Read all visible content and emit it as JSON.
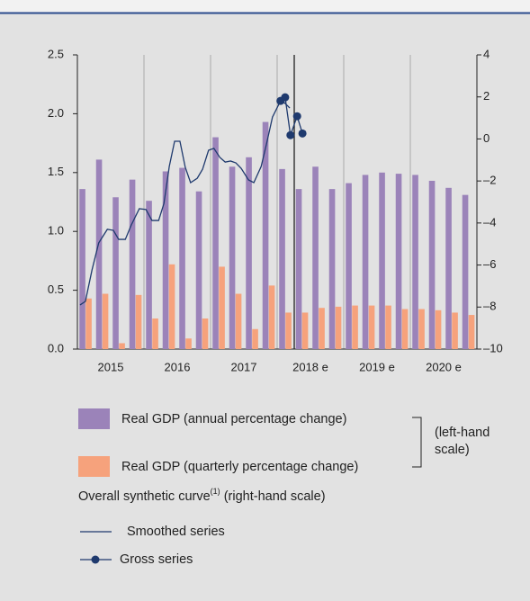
{
  "chart_data": {
    "type": "bar-line",
    "categories": [
      null,
      null,
      null,
      null,
      null,
      null,
      null,
      null,
      null,
      null,
      null,
      null,
      null,
      null,
      null,
      null,
      null,
      null,
      null,
      null,
      null,
      null,
      null,
      null
    ],
    "year_labels": [
      "2015",
      "2016",
      "2017",
      "2018 e",
      "2019 e",
      "2020 e"
    ],
    "xlim": [
      2015,
      2021
    ],
    "ylim": [
      0,
      2.5
    ],
    "yticks": [
      {
        "value": 0,
        "label": "0.0"
      },
      {
        "value": 0.5,
        "label": "0.5"
      },
      {
        "value": 1,
        "label": "1.0"
      },
      {
        "value": 1.5,
        "label": "1.5"
      },
      {
        "value": 2,
        "label": "2.0"
      },
      {
        "value": 2.5,
        "label": "2.5"
      }
    ],
    "y2lim": [
      -10,
      4
    ],
    "y2ticks": [
      {
        "value": -10,
        "label": "–10"
      },
      {
        "value": -8,
        "label": "–8"
      },
      {
        "value": -6,
        "label": "–6"
      },
      {
        "value": -4,
        "label": "–4"
      },
      {
        "value": -2,
        "label": "–2"
      },
      0,
      2,
      4
    ],
    "series": [
      {
        "name": "Real GDP (annual percentage change)",
        "type": "bar",
        "color": "#9b83b9",
        "values": [
          1.36,
          1.61,
          1.29,
          1.44,
          1.26,
          1.51,
          1.54,
          1.34,
          1.8,
          1.55,
          1.63,
          1.93,
          1.53,
          1.36,
          1.55,
          1.36,
          1.41,
          1.48,
          1.5,
          1.49,
          1.48,
          1.43,
          1.37,
          1.31
        ]
      },
      {
        "name": "Real GDP (quarterly percentage change)",
        "type": "bar",
        "color": "#f6a27c",
        "values": [
          0.43,
          0.47,
          0.05,
          0.46,
          0.26,
          0.72,
          0.09,
          0.26,
          0.7,
          0.47,
          0.17,
          0.54,
          0.31,
          0.31,
          0.35,
          0.36,
          0.37,
          0.37,
          0.37,
          0.34,
          0.34,
          0.33,
          0.31,
          0.29
        ]
      },
      {
        "name": "Smoothed series",
        "type": "line",
        "axis": "y2",
        "color": "#1f3a6e",
        "x": [
          2015.04,
          2015.12,
          2015.22,
          2015.32,
          2015.45,
          2015.54,
          2015.62,
          2015.72,
          2015.81,
          2015.93,
          2016.03,
          2016.12,
          2016.22,
          2016.3,
          2016.38,
          2016.46,
          2016.54,
          2016.62,
          2016.7,
          2016.8,
          2016.88,
          2016.97,
          2017.05,
          2017.14,
          2017.22,
          2017.3,
          2017.38,
          2017.46,
          2017.57,
          2017.65,
          2017.76,
          2017.84,
          2017.93,
          2018.03,
          2018.11,
          2018.19
        ],
        "values": [
          -7.9,
          -7.73,
          -6.23,
          -4.95,
          -4.3,
          -4.35,
          -4.78,
          -4.78,
          -4.09,
          -3.32,
          -3.36,
          -3.88,
          -3.88,
          -3.07,
          -1.31,
          -0.11,
          -0.11,
          -1.35,
          -2.08,
          -1.87,
          -1.44,
          -0.54,
          -0.45,
          -0.88,
          -1.1,
          -1.05,
          -1.14,
          -1.4,
          -1.95,
          -2.08,
          -1.31,
          -0.24,
          1.04,
          1.68,
          1.72,
          1.47
        ]
      },
      {
        "name": "Gross series",
        "type": "line-markers",
        "axis": "y2",
        "color": "#1f3a6e",
        "x": [
          2018.05,
          2018.12,
          2018.2,
          2018.3,
          2018.38
        ],
        "values": [
          1.81,
          1.98,
          0.18,
          1.08,
          0.26
        ]
      }
    ],
    "legend_group_note": [
      "(left-hand",
      "scale)"
    ],
    "legend_heading": {
      "text": "Overall synthetic curve",
      "superscript": "(1)",
      "suffix": " (right-hand scale)"
    }
  }
}
